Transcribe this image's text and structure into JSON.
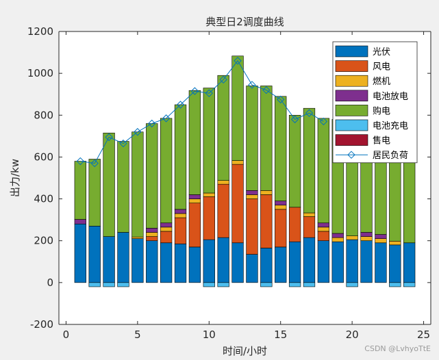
{
  "chart_data": {
    "type": "bar",
    "title": "典型日2调度曲线",
    "xlabel": "时间/小时",
    "ylabel": "出力/kw",
    "xlim": [
      -0.5,
      25.5
    ],
    "ylim": [
      -200,
      1200
    ],
    "xticks": [
      0,
      5,
      10,
      15,
      20,
      25
    ],
    "yticks": [
      -200,
      0,
      200,
      400,
      600,
      800,
      1000,
      1200
    ],
    "x": [
      1,
      2,
      3,
      4,
      5,
      6,
      7,
      8,
      9,
      10,
      11,
      12,
      13,
      14,
      15,
      16,
      17,
      18,
      19,
      20,
      21,
      22,
      23,
      24
    ],
    "stack_series": [
      {
        "name": "光伏",
        "color": "#0072bd",
        "values": [
          280,
          270,
          220,
          240,
          210,
          200,
          190,
          185,
          170,
          205,
          215,
          190,
          135,
          165,
          170,
          195,
          215,
          200,
          195,
          205,
          200,
          190,
          180,
          190
        ]
      },
      {
        "name": "风电",
        "color": "#d95319",
        "values": [
          0,
          0,
          0,
          0,
          0,
          20,
          55,
          125,
          210,
          205,
          255,
          375,
          265,
          255,
          180,
          165,
          100,
          45,
          0,
          0,
          0,
          0,
          0,
          0
        ]
      },
      {
        "name": "燃机",
        "color": "#edb120",
        "values": [
          0,
          0,
          0,
          0,
          8,
          20,
          20,
          20,
          20,
          18,
          18,
          18,
          20,
          20,
          20,
          0,
          18,
          20,
          20,
          18,
          20,
          20,
          18,
          0
        ]
      },
      {
        "name": "电池放电",
        "color": "#7e2f8e",
        "values": [
          22,
          0,
          0,
          0,
          0,
          20,
          20,
          20,
          20,
          0,
          0,
          0,
          20,
          0,
          20,
          0,
          0,
          20,
          20,
          0,
          20,
          20,
          0,
          0
        ]
      },
      {
        "name": "购电",
        "color": "#77ac30",
        "values": [
          278,
          320,
          495,
          435,
          502,
          500,
          500,
          500,
          498,
          502,
          502,
          500,
          500,
          500,
          500,
          440,
          500,
          500,
          545,
          557,
          558,
          550,
          580,
          588
        ]
      }
    ],
    "negative_series": [
      {
        "name": "电池充电",
        "color": "#4dbeee",
        "values": [
          0,
          -20,
          -20,
          -20,
          0,
          0,
          0,
          0,
          0,
          -20,
          -20,
          0,
          0,
          -20,
          0,
          -20,
          -20,
          0,
          0,
          -20,
          0,
          0,
          -20,
          -20
        ]
      }
    ],
    "sell_series": {
      "name": "售电",
      "color": "#a2142f"
    },
    "line_series": {
      "name": "居民负荷",
      "color": "#0072bd",
      "values": [
        580,
        570,
        695,
        665,
        720,
        760,
        785,
        850,
        915,
        905,
        970,
        1060,
        945,
        920,
        875,
        780,
        810,
        770,
        null,
        null,
        null,
        null,
        null,
        null
      ]
    },
    "legend_entries": [
      "光伏",
      "风电",
      "燃机",
      "电池放电",
      "购电",
      "电池充电",
      "售电",
      "居民负荷"
    ],
    "legend_position": "top-right",
    "grid": false
  },
  "watermark": "CSDN @LvhyoTtE"
}
